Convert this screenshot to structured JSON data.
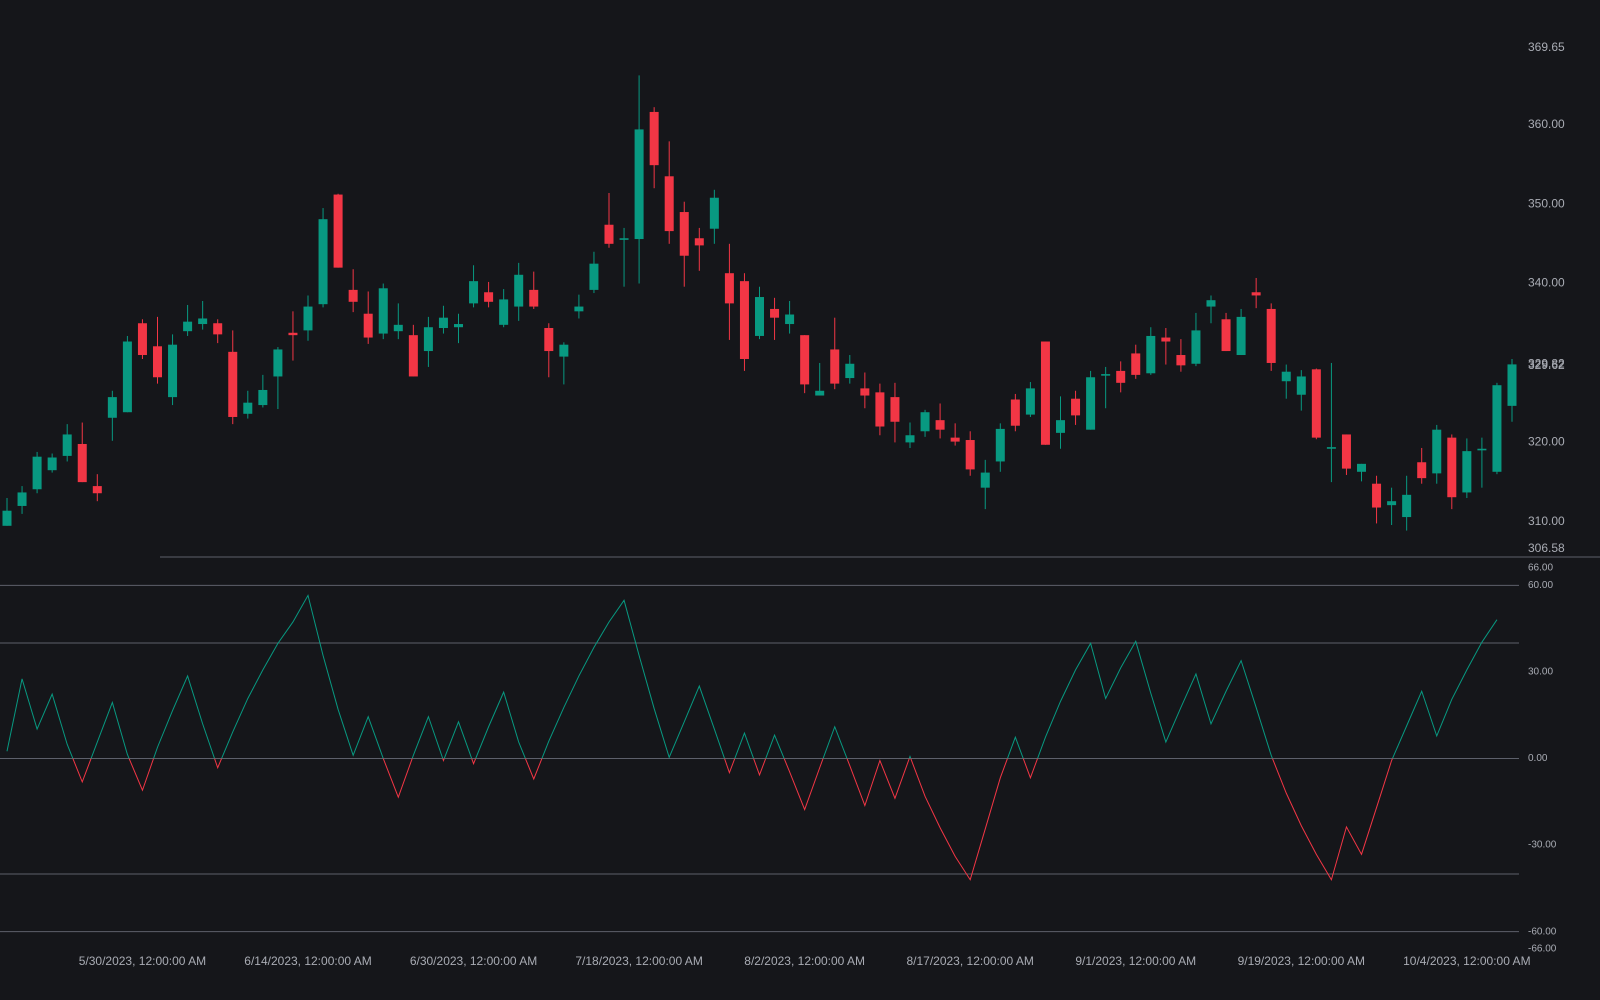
{
  "chart_data": [
    {
      "type": "candlestick",
      "categories": [
        null,
        null,
        null,
        null,
        null,
        null,
        null,
        null,
        null,
        "5/30/2023, 12:00:00 AM",
        null,
        null,
        null,
        null,
        null,
        null,
        null,
        null,
        null,
        null,
        "6/14/2023, 12:00:00 AM",
        null,
        null,
        null,
        null,
        null,
        null,
        null,
        null,
        null,
        null,
        "6/30/2023, 12:00:00 AM",
        null,
        null,
        null,
        null,
        null,
        null,
        null,
        null,
        null,
        null,
        "7/18/2023, 12:00:00 AM",
        null,
        null,
        null,
        null,
        null,
        null,
        null,
        null,
        null,
        null,
        "8/2/2023, 12:00:00 AM",
        null,
        null,
        null,
        null,
        null,
        null,
        null,
        null,
        null,
        null,
        "8/17/2023, 12:00:00 AM",
        null,
        null,
        null,
        null,
        null,
        null,
        null,
        null,
        null,
        null,
        "9/1/2023, 12:00:00 AM",
        null,
        null,
        null,
        null,
        null,
        null,
        null,
        null,
        null,
        null,
        "9/19/2023, 12:00:00 AM",
        null,
        null,
        null,
        null,
        null,
        null,
        null,
        null,
        null,
        null,
        "10/4/2023, 12:00:00 AM",
        null,
        null,
        null
      ],
      "open": [
        309.5,
        312.0,
        314.1,
        316.5,
        318.3,
        319.8,
        314.5,
        323.1,
        323.8,
        335.0,
        332.1,
        325.7,
        334.0,
        334.9,
        335.0,
        331.4,
        323.6,
        324.7,
        328.3,
        333.8,
        334.1,
        337.4,
        351.2,
        339.2,
        336.2,
        333.7,
        334.0,
        333.5,
        331.5,
        334.4,
        334.5,
        337.5,
        338.9,
        334.8,
        337.1,
        339.2,
        334.4,
        330.8,
        336.5,
        339.2,
        347.4,
        345.5,
        345.6,
        361.6,
        353.5,
        349.0,
        345.7,
        346.9,
        341.3,
        340.3,
        333.4,
        336.8,
        334.9,
        333.5,
        325.9,
        331.7,
        328.1,
        326.8,
        326.3,
        325.7,
        320.0,
        321.4,
        322.8,
        320.6,
        320.3,
        314.3,
        317.6,
        325.4,
        323.5,
        332.7,
        321.2,
        325.5,
        321.6,
        328.4,
        329.0,
        331.2,
        328.7,
        333.2,
        331.0,
        329.9,
        337.1,
        335.5,
        331.0,
        338.9,
        336.8,
        327.7,
        326.0,
        329.2,
        319.2,
        321.0,
        316.3,
        314.8,
        312.1,
        310.6,
        317.5,
        316.1,
        320.6,
        313.7,
        319.0,
        316.3,
        324.6
      ],
      "high": [
        313,
        314.5,
        318.8,
        318.6,
        322.3,
        322.5,
        316,
        326.5,
        333.4,
        335.5,
        335.8,
        333.6,
        337.3,
        337.8,
        335.5,
        334.1,
        326.5,
        328.5,
        332.0,
        336.5,
        338.5,
        349.5,
        351.3,
        341.8,
        339.0,
        340.0,
        337.5,
        334.8,
        335.8,
        337.2,
        336.2,
        342.3,
        340.2,
        339.3,
        342.6,
        341.5,
        335.0,
        332.6,
        338.6,
        344.0,
        351.4,
        347.0,
        366.2,
        362.2,
        357.9,
        350.3,
        347.0,
        351.8,
        345.0,
        341.3,
        339.6,
        338.2,
        337.8,
        333.5,
        330.0,
        335.7,
        331.0,
        328.8,
        327.4,
        327.5,
        322.5,
        324.1,
        324.9,
        322.4,
        321.4,
        317.8,
        322.4,
        326.1,
        327.6,
        332.7,
        325.8,
        326.5,
        329.0,
        329.5,
        330.2,
        332.3,
        334.5,
        334.4,
        333.0,
        336.3,
        338.5,
        336.3,
        336.8,
        340.7,
        337.5,
        329.8,
        329.1,
        329.3,
        330.0,
        321.0,
        317.3,
        315.8,
        314.3,
        315.8,
        319.3,
        322.2,
        321.0,
        320.5,
        320.6,
        327.5,
        330.5
      ],
      "low": [
        309.5,
        311,
        313.6,
        316.2,
        317.6,
        315.0,
        312.6,
        320.2,
        323.8,
        330.5,
        327.4,
        324.7,
        333.4,
        334.2,
        332.5,
        322.3,
        323.0,
        324.4,
        324.2,
        330.3,
        332.8,
        337.0,
        342.0,
        336.4,
        332.4,
        333.0,
        333.0,
        328.3,
        329.5,
        333.7,
        332.5,
        337.0,
        337.0,
        334.5,
        335.3,
        336.8,
        328.2,
        327.3,
        335.6,
        338.8,
        344.5,
        339.6,
        340.0,
        352.0,
        345.0,
        339.6,
        341.6,
        345.0,
        332.9,
        329.0,
        333.0,
        332.9,
        333.7,
        326.2,
        325.9,
        326.7,
        327.4,
        324.3,
        320.9,
        320.0,
        319.3,
        320.7,
        320.5,
        319.6,
        315.8,
        311.6,
        316.3,
        321.4,
        323.2,
        319.7,
        319.2,
        322.2,
        321.6,
        324.3,
        326.3,
        328.0,
        328.5,
        329.8,
        328.9,
        329.6,
        335.0,
        331.5,
        331.0,
        336.9,
        329.0,
        325.5,
        324.0,
        320.4,
        315.0,
        315.9,
        315.1,
        309.8,
        309.6,
        308.9,
        314.8,
        314.8,
        311.6,
        313.0,
        314.3,
        316.0,
        322.6
      ],
      "close": [
        311.4,
        313.7,
        318.2,
        318.1,
        321.0,
        315.0,
        313.6,
        325.7,
        332.7,
        331.0,
        328.2,
        332.3,
        335.2,
        335.6,
        333.6,
        323.2,
        325.0,
        326.6,
        331.7,
        333.5,
        337.1,
        348.1,
        342.0,
        337.7,
        333.2,
        339.4,
        334.8,
        328.3,
        334.5,
        335.7,
        334.9,
        340.3,
        337.7,
        338.0,
        341.1,
        337.1,
        331.5,
        332.3,
        337.1,
        342.5,
        345.0,
        345.7,
        359.4,
        354.9,
        346.6,
        343.5,
        344.8,
        350.8,
        337.5,
        330.5,
        338.3,
        335.7,
        336.1,
        327.3,
        326.5,
        327.4,
        329.9,
        325.9,
        322.0,
        322.6,
        320.9,
        323.8,
        321.6,
        320.1,
        316.6,
        316.2,
        321.7,
        322.1,
        326.8,
        319.7,
        322.8,
        323.4,
        328.2,
        328.6,
        327.5,
        328.5,
        333.4,
        332.7,
        329.7,
        334.1,
        337.9,
        331.5,
        335.8,
        338.5,
        330.0,
        328.9,
        328.3,
        320.6,
        319.4,
        316.7,
        317.3,
        311.8,
        312.6,
        313.4,
        315.5,
        321.6,
        313.1,
        318.9,
        319.2,
        327.2,
        329.82
      ],
      "up_color": "#089981",
      "down_color": "#f23645",
      "ylim": [
        306.58,
        369.65
      ],
      "yticks": [
        369.65,
        {
          "value": 360,
          "label": "360.00"
        },
        {
          "value": 350,
          "label": "350.00"
        },
        {
          "value": 340,
          "label": "340.00"
        },
        {
          "value": 320,
          "label": "320.00"
        },
        {
          "value": 310,
          "label": "310.00"
        },
        306.58
      ],
      "last_values": [
        329.62,
        329.82
      ]
    },
    {
      "type": "line",
      "values": [
        2.5,
        27.6,
        10.2,
        22.3,
        4.9,
        -8.1,
        5.7,
        19.4,
        1.4,
        -11.0,
        3.9,
        16.6,
        28.6,
        12.0,
        -3.2,
        9.2,
        20.8,
        30.7,
        39.9,
        47.3,
        56.5,
        35.7,
        17.0,
        1.1,
        14.5,
        0,
        -13.4,
        1.1,
        14.5,
        -0.7,
        12.7,
        -1.8,
        11.0,
        23.0,
        5.7,
        -7.1,
        6.0,
        17.7,
        28.6,
        38.5,
        47.3,
        54.8,
        35.7,
        17.3,
        0.4,
        12.7,
        25.1,
        10.2,
        -4.9,
        8.8,
        -5.7,
        8.1,
        -4.6,
        -17.7,
        -3.2,
        11.0,
        -2.5,
        -16.3,
        -0.7,
        -13.8,
        0.7,
        -13.1,
        -24.0,
        -33.9,
        -42.0,
        -24.4,
        -6.7,
        7.4,
        -6.7,
        7.4,
        19.8,
        30.7,
        39.9,
        20.8,
        31.4,
        40.6,
        22.6,
        5.7,
        17.7,
        29.3,
        12.0,
        23.3,
        33.9,
        17.7,
        1.1,
        -12.0,
        -23.3,
        -33.2,
        -42.0,
        -23.7,
        -33.2,
        -17.0,
        -0.7,
        11.3,
        23.3,
        7.8,
        20.5,
        30.7,
        40.3,
        48.1,
        null
      ],
      "pos_color": "#089981",
      "neg_color": "#f23645",
      "ylim": [
        -66,
        66
      ],
      "yticks": [
        {
          "value": 66,
          "label": "66.00"
        },
        {
          "value": 60,
          "label": "60.00"
        },
        {
          "value": 30,
          "label": "30.00"
        },
        {
          "value": 0,
          "label": "0.00"
        },
        {
          "value": -30,
          "label": "-30.00"
        },
        {
          "value": -60,
          "label": "-60.00"
        },
        {
          "value": -66,
          "label": "-66.00"
        }
      ],
      "levels": [
        60,
        40,
        0,
        -40,
        -60
      ]
    }
  ]
}
